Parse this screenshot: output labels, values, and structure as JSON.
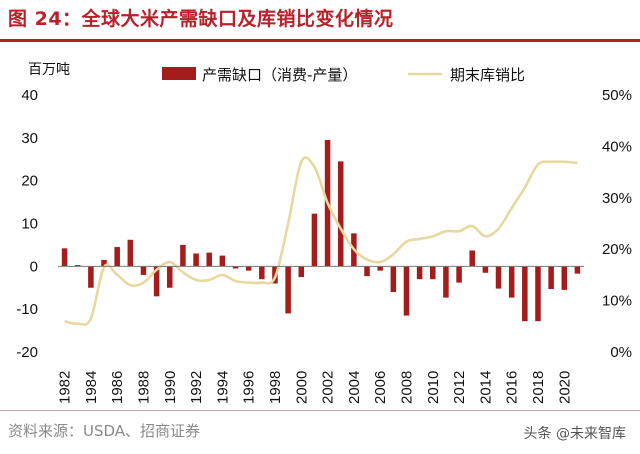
{
  "title": "图 24：全球大米产需缺口及库销比变化情况",
  "source": "资料来源：USDA、招商证券",
  "watermark": "头条 @未来智库",
  "chart_data": {
    "type": "bar+line",
    "ylabel_left": "百万吨",
    "ylim_left": [
      -20,
      40
    ],
    "yticks_left": [
      "-20",
      "-10",
      "0",
      "10",
      "20",
      "30",
      "40"
    ],
    "ylim_right": [
      0,
      50
    ],
    "yticks_right": [
      "0%",
      "10%",
      "20%",
      "30%",
      "40%",
      "50%"
    ],
    "x_tick_labels": [
      "1982",
      "1984",
      "1986",
      "1988",
      "1990",
      "1992",
      "1994",
      "1996",
      "1998",
      "2000",
      "2002",
      "2004",
      "2006",
      "2008",
      "2010",
      "2012",
      "2014",
      "2016",
      "2018",
      "2020"
    ],
    "years": [
      1982,
      1983,
      1984,
      1985,
      1986,
      1987,
      1988,
      1989,
      1990,
      1991,
      1992,
      1993,
      1994,
      1995,
      1996,
      1997,
      1998,
      1999,
      2000,
      2001,
      2002,
      2003,
      2004,
      2005,
      2006,
      2007,
      2008,
      2009,
      2010,
      2011,
      2012,
      2013,
      2014,
      2015,
      2016,
      2017,
      2018,
      2019,
      2020,
      2021
    ],
    "series": [
      {
        "name": "产需缺口（消费-产量）",
        "type": "bar",
        "color": "#a51c1c",
        "values": [
          4.2,
          0.3,
          -5,
          1.5,
          4.5,
          6.2,
          -2,
          -7,
          -5,
          5,
          3,
          3.2,
          2.5,
          -0.5,
          -1,
          -3,
          -4,
          -11,
          -2.5,
          12.3,
          29.5,
          24.5,
          7.7,
          -2.3,
          -1,
          -6,
          -11.5,
          -3,
          -3,
          -7.3,
          -3.8,
          3.7,
          -1.5,
          -5.2,
          -7.3,
          -12.8,
          -12.8,
          -5.3,
          -5.5,
          -1.7
        ]
      },
      {
        "name": "期末库销比",
        "type": "line",
        "axis": "right",
        "color": "#e8d8a0",
        "values": [
          6,
          5.5,
          6.5,
          16.5,
          15,
          13,
          13.5,
          16,
          17.5,
          15.5,
          14,
          14,
          15,
          13.8,
          13.5,
          13.5,
          14.5,
          25,
          37,
          36,
          29,
          24,
          20,
          18,
          17.5,
          19,
          21.5,
          22,
          22.5,
          23.5,
          23.5,
          24.5,
          22.5,
          24,
          28,
          32,
          36.5,
          37,
          37,
          36.8
        ]
      }
    ],
    "legend": [
      "产需缺口（消费-产量）",
      "期末库销比"
    ],
    "legend_position": "top"
  }
}
